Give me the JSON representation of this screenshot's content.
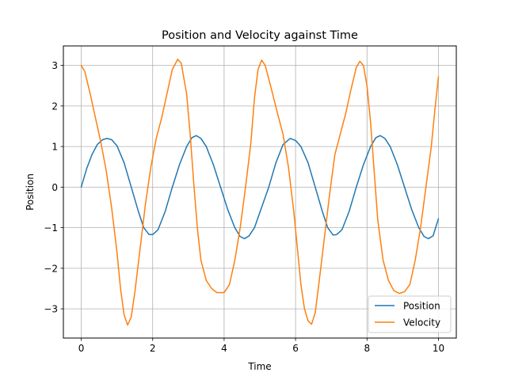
{
  "chart_data": {
    "type": "line",
    "title": "Position and Velocity against Time",
    "xlabel": "Time",
    "ylabel": "Position",
    "xlim": [
      -0.5,
      10.5
    ],
    "ylim": [
      -3.72,
      3.48
    ],
    "xticks": [
      0,
      2,
      4,
      6,
      8,
      10
    ],
    "yticks": [
      -3,
      -2,
      -1,
      0,
      1,
      2,
      3
    ],
    "xtick_labels": [
      "0",
      "2",
      "4",
      "6",
      "8",
      "10"
    ],
    "ytick_labels": [
      "−3",
      "−2",
      "−1",
      "0",
      "1",
      "2",
      "3"
    ],
    "grid": true,
    "legend_position": "lower-right",
    "series": [
      {
        "name": "Position",
        "color": "#1f77b4",
        "points": [
          [
            0,
            0.0
          ],
          [
            0.15,
            0.45
          ],
          [
            0.3,
            0.8
          ],
          [
            0.45,
            1.05
          ],
          [
            0.6,
            1.17
          ],
          [
            0.72,
            1.2
          ],
          [
            0.85,
            1.17
          ],
          [
            1.0,
            1.02
          ],
          [
            1.2,
            0.6
          ],
          [
            1.4,
            0.0
          ],
          [
            1.6,
            -0.6
          ],
          [
            1.75,
            -1.0
          ],
          [
            1.9,
            -1.17
          ],
          [
            2.0,
            -1.17
          ],
          [
            2.15,
            -1.05
          ],
          [
            2.35,
            -0.6
          ],
          [
            2.55,
            0.0
          ],
          [
            2.75,
            0.55
          ],
          [
            2.95,
            1.0
          ],
          [
            3.1,
            1.22
          ],
          [
            3.22,
            1.27
          ],
          [
            3.35,
            1.2
          ],
          [
            3.5,
            1.0
          ],
          [
            3.7,
            0.55
          ],
          [
            3.9,
            0.0
          ],
          [
            4.1,
            -0.55
          ],
          [
            4.3,
            -1.0
          ],
          [
            4.45,
            -1.22
          ],
          [
            4.57,
            -1.27
          ],
          [
            4.7,
            -1.2
          ],
          [
            4.85,
            -1.0
          ],
          [
            5.05,
            -0.5
          ],
          [
            5.25,
            0.0
          ],
          [
            5.45,
            0.6
          ],
          [
            5.65,
            1.05
          ],
          [
            5.85,
            1.2
          ],
          [
            6.0,
            1.15
          ],
          [
            6.15,
            1.0
          ],
          [
            6.35,
            0.6
          ],
          [
            6.55,
            0.0
          ],
          [
            6.75,
            -0.6
          ],
          [
            6.9,
            -1.0
          ],
          [
            7.05,
            -1.18
          ],
          [
            7.15,
            -1.17
          ],
          [
            7.3,
            -1.05
          ],
          [
            7.5,
            -0.6
          ],
          [
            7.7,
            0.0
          ],
          [
            7.9,
            0.55
          ],
          [
            8.1,
            1.0
          ],
          [
            8.25,
            1.22
          ],
          [
            8.37,
            1.27
          ],
          [
            8.5,
            1.2
          ],
          [
            8.65,
            1.0
          ],
          [
            8.85,
            0.55
          ],
          [
            9.05,
            0.0
          ],
          [
            9.25,
            -0.55
          ],
          [
            9.45,
            -1.0
          ],
          [
            9.6,
            -1.22
          ],
          [
            9.72,
            -1.27
          ],
          [
            9.85,
            -1.2
          ],
          [
            10.0,
            -0.78
          ]
        ]
      },
      {
        "name": "Velocity",
        "color": "#ff7f0e",
        "points": [
          [
            0,
            3.0
          ],
          [
            0.1,
            2.85
          ],
          [
            0.25,
            2.3
          ],
          [
            0.4,
            1.7
          ],
          [
            0.55,
            1.1
          ],
          [
            0.7,
            0.4
          ],
          [
            0.85,
            -0.5
          ],
          [
            1.0,
            -1.6
          ],
          [
            1.1,
            -2.5
          ],
          [
            1.2,
            -3.15
          ],
          [
            1.3,
            -3.4
          ],
          [
            1.4,
            -3.2
          ],
          [
            1.5,
            -2.6
          ],
          [
            1.65,
            -1.5
          ],
          [
            1.8,
            -0.4
          ],
          [
            1.95,
            0.5
          ],
          [
            2.1,
            1.2
          ],
          [
            2.25,
            1.7
          ],
          [
            2.4,
            2.3
          ],
          [
            2.55,
            2.9
          ],
          [
            2.7,
            3.15
          ],
          [
            2.8,
            3.05
          ],
          [
            2.95,
            2.3
          ],
          [
            3.05,
            1.3
          ],
          [
            3.15,
            0.1
          ],
          [
            3.25,
            -1.0
          ],
          [
            3.35,
            -1.8
          ],
          [
            3.5,
            -2.3
          ],
          [
            3.65,
            -2.5
          ],
          [
            3.8,
            -2.6
          ],
          [
            4.0,
            -2.6
          ],
          [
            4.15,
            -2.4
          ],
          [
            4.3,
            -1.8
          ],
          [
            4.45,
            -1.0
          ],
          [
            4.6,
            0.0
          ],
          [
            4.75,
            1.1
          ],
          [
            4.85,
            2.2
          ],
          [
            4.95,
            2.9
          ],
          [
            5.05,
            3.13
          ],
          [
            5.15,
            3.0
          ],
          [
            5.3,
            2.5
          ],
          [
            5.5,
            1.8
          ],
          [
            5.65,
            1.3
          ],
          [
            5.8,
            0.5
          ],
          [
            5.95,
            -0.6
          ],
          [
            6.05,
            -1.5
          ],
          [
            6.15,
            -2.4
          ],
          [
            6.25,
            -3.0
          ],
          [
            6.35,
            -3.3
          ],
          [
            6.45,
            -3.38
          ],
          [
            6.55,
            -3.1
          ],
          [
            6.65,
            -2.4
          ],
          [
            6.8,
            -1.3
          ],
          [
            6.95,
            -0.2
          ],
          [
            7.1,
            0.8
          ],
          [
            7.25,
            1.3
          ],
          [
            7.4,
            1.8
          ],
          [
            7.55,
            2.4
          ],
          [
            7.7,
            2.95
          ],
          [
            7.8,
            3.1
          ],
          [
            7.9,
            3.0
          ],
          [
            8.0,
            2.5
          ],
          [
            8.1,
            1.6
          ],
          [
            8.2,
            0.4
          ],
          [
            8.3,
            -0.8
          ],
          [
            8.45,
            -1.8
          ],
          [
            8.6,
            -2.3
          ],
          [
            8.75,
            -2.55
          ],
          [
            8.9,
            -2.62
          ],
          [
            9.05,
            -2.58
          ],
          [
            9.2,
            -2.4
          ],
          [
            9.35,
            -1.8
          ],
          [
            9.5,
            -1.0
          ],
          [
            9.65,
            0.0
          ],
          [
            9.8,
            1.0
          ],
          [
            9.9,
            1.9
          ],
          [
            10.0,
            2.72
          ]
        ]
      }
    ]
  }
}
